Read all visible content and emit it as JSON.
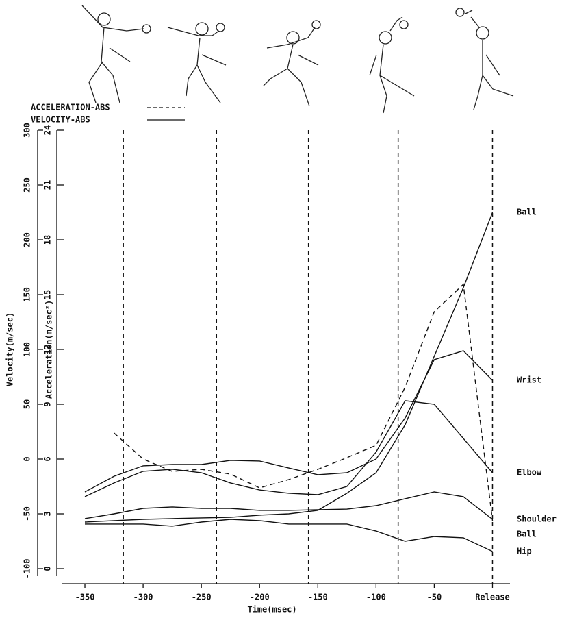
{
  "chart_data": {
    "type": "line",
    "x_label": "Time(msec)",
    "y_label": "Velocity(m/sec)",
    "y2_label": "Acceleration(m/sec²)",
    "x": [
      -350,
      -325,
      -300,
      -275,
      -250,
      -225,
      -200,
      -175,
      -150,
      -125,
      -100,
      -75,
      -50,
      -25,
      0
    ],
    "xlim": [
      -370,
      15
    ],
    "xticks": [
      -350,
      -300,
      -250,
      -200,
      -150,
      -100,
      -50,
      {
        "value": 0,
        "label": "Release"
      }
    ],
    "ylim": [
      0,
      24
    ],
    "yticks": [
      0,
      3,
      6,
      9,
      12,
      15,
      18,
      21,
      24
    ],
    "y2lim": [
      -100,
      300
    ],
    "y2ticks": [
      -100,
      -50,
      0,
      50,
      100,
      150,
      200,
      250,
      300
    ],
    "phase_lines": [
      -317,
      -237,
      -158,
      -81,
      0
    ],
    "legend": [
      {
        "name": "ACCELERATION-ABS",
        "dash": true
      },
      {
        "name": "VELOCITY-ABS",
        "dash": false
      }
    ],
    "color": "#111111",
    "series": [
      {
        "name": "Ball",
        "color": "#111111",
        "values": [
          2.55,
          2.63,
          2.7,
          2.74,
          2.78,
          2.81,
          2.93,
          3.0,
          3.19,
          4.13,
          5.25,
          7.88,
          11.63,
          15.38,
          19.5
        ]
      },
      {
        "name": "Wrist",
        "color": "#111111",
        "values": [
          4.2,
          5.06,
          5.63,
          5.7,
          5.7,
          5.93,
          5.89,
          5.51,
          5.14,
          5.25,
          6.0,
          8.25,
          11.44,
          11.93,
          10.31
        ]
      },
      {
        "name": "Elbow",
        "color": "#111111",
        "values": [
          3.94,
          4.69,
          5.33,
          5.44,
          5.25,
          4.69,
          4.31,
          4.13,
          4.05,
          4.5,
          6.38,
          9.19,
          9.0,
          7.13,
          5.25
        ]
      },
      {
        "name": "Ball",
        "color": "#111111",
        "axis": "y2",
        "dash": true,
        "values": [
          null,
          23.75,
          0,
          -11.25,
          -9.4,
          -13.75,
          -26.25,
          -18.75,
          -9.4,
          1.25,
          12.5,
          65.6,
          134.4,
          159.4,
          -56.25
        ]
      },
      {
        "name": "Shoulder",
        "color": "#111111",
        "values": [
          2.74,
          3.0,
          3.3,
          3.38,
          3.3,
          3.3,
          3.19,
          3.19,
          3.23,
          3.26,
          3.45,
          3.83,
          4.2,
          3.94,
          2.7
        ]
      },
      {
        "name": "Hip",
        "color": "#111111",
        "values": [
          2.44,
          2.44,
          2.44,
          2.33,
          2.55,
          2.7,
          2.63,
          2.44,
          2.44,
          2.44,
          2.06,
          1.5,
          1.76,
          1.69,
          0.94
        ]
      }
    ]
  }
}
